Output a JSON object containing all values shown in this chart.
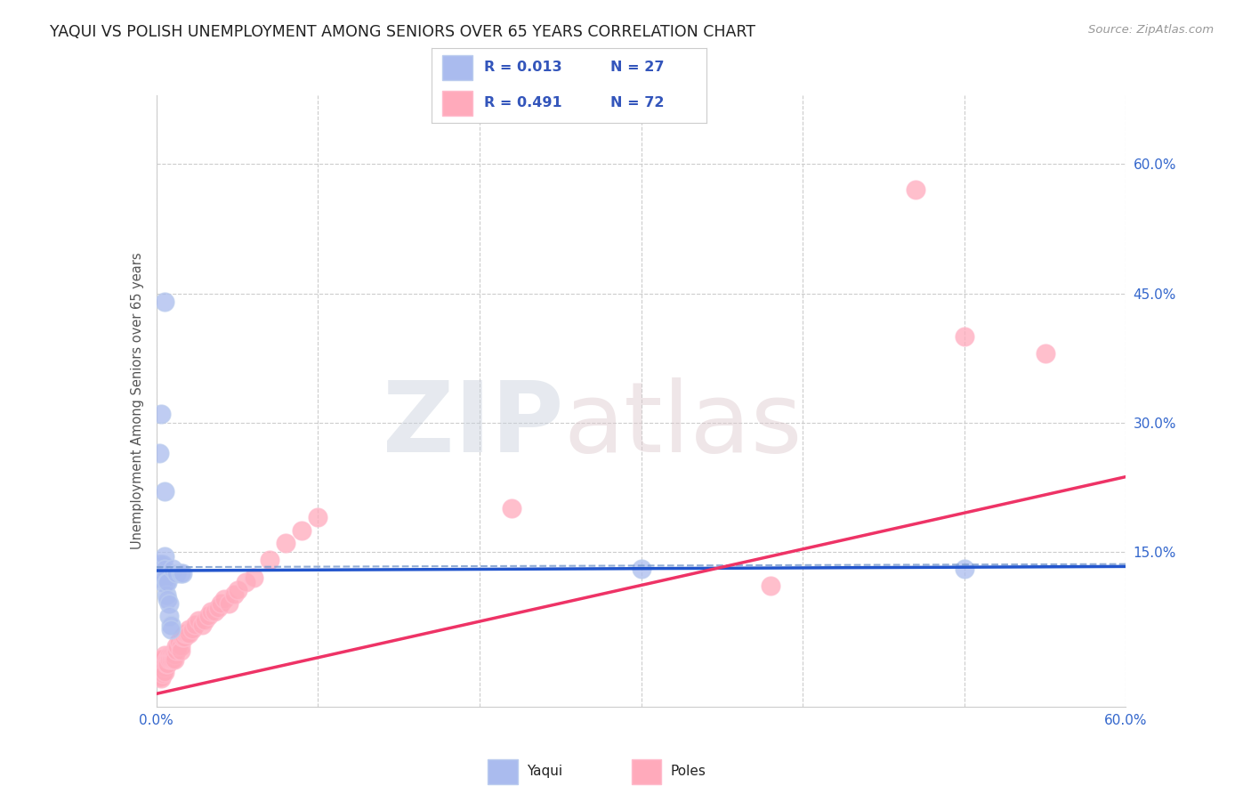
{
  "title": "YAQUI VS POLISH UNEMPLOYMENT AMONG SENIORS OVER 65 YEARS CORRELATION CHART",
  "source": "Source: ZipAtlas.com",
  "ylabel": "Unemployment Among Seniors over 65 years",
  "xlim": [
    0.0,
    0.6
  ],
  "ylim": [
    -0.03,
    0.68
  ],
  "ytick_right_labels": [
    "15.0%",
    "30.0%",
    "45.0%",
    "60.0%"
  ],
  "ytick_right_positions": [
    0.15,
    0.3,
    0.45,
    0.6
  ],
  "background_color": "#ffffff",
  "grid_color": "#cccccc",
  "yaqui_color": "#aabbee",
  "poles_color": "#ffaabb",
  "trend_blue_color": "#2255cc",
  "trend_pink_color": "#ee3366",
  "trend_dashed_color": "#7799cc",
  "blue_line_intercept": 0.128,
  "blue_line_slope": 0.008,
  "pink_line_intercept": -0.015,
  "pink_line_slope": 0.42,
  "dashed_line_intercept": 0.132,
  "dashed_line_slope": 0.006,
  "yaqui_x": [
    0.002,
    0.002,
    0.003,
    0.003,
    0.004,
    0.004,
    0.005,
    0.005,
    0.005,
    0.006,
    0.006,
    0.007,
    0.007,
    0.008,
    0.008,
    0.009,
    0.009,
    0.01,
    0.012,
    0.015,
    0.016,
    0.002,
    0.003,
    0.005,
    0.005,
    0.3,
    0.5
  ],
  "yaqui_y": [
    0.135,
    0.125,
    0.135,
    0.12,
    0.135,
    0.115,
    0.145,
    0.13,
    0.12,
    0.115,
    0.1,
    0.115,
    0.095,
    0.09,
    0.075,
    0.065,
    0.06,
    0.13,
    0.125,
    0.125,
    0.125,
    0.265,
    0.31,
    0.44,
    0.22,
    0.13,
    0.13
  ],
  "poles_x": [
    0.001,
    0.001,
    0.001,
    0.002,
    0.002,
    0.002,
    0.002,
    0.002,
    0.003,
    0.003,
    0.003,
    0.003,
    0.003,
    0.003,
    0.003,
    0.004,
    0.004,
    0.004,
    0.004,
    0.004,
    0.005,
    0.005,
    0.005,
    0.005,
    0.006,
    0.006,
    0.007,
    0.007,
    0.008,
    0.008,
    0.009,
    0.009,
    0.01,
    0.01,
    0.011,
    0.011,
    0.012,
    0.012,
    0.013,
    0.014,
    0.015,
    0.015,
    0.016,
    0.017,
    0.018,
    0.019,
    0.02,
    0.02,
    0.022,
    0.024,
    0.026,
    0.028,
    0.03,
    0.032,
    0.034,
    0.036,
    0.038,
    0.04,
    0.042,
    0.045,
    0.048,
    0.05,
    0.055,
    0.06,
    0.07,
    0.08,
    0.09,
    0.1,
    0.22,
    0.38,
    0.55,
    0.47,
    0.5
  ],
  "poles_y": [
    0.015,
    0.01,
    0.005,
    0.02,
    0.015,
    0.01,
    0.005,
    0.008,
    0.02,
    0.015,
    0.01,
    0.008,
    0.005,
    0.003,
    0.025,
    0.02,
    0.015,
    0.01,
    0.008,
    0.025,
    0.02,
    0.015,
    0.01,
    0.03,
    0.025,
    0.02,
    0.025,
    0.02,
    0.03,
    0.025,
    0.03,
    0.025,
    0.03,
    0.025,
    0.03,
    0.025,
    0.04,
    0.035,
    0.04,
    0.045,
    0.04,
    0.035,
    0.05,
    0.05,
    0.055,
    0.055,
    0.06,
    0.055,
    0.06,
    0.065,
    0.07,
    0.065,
    0.07,
    0.075,
    0.08,
    0.08,
    0.085,
    0.09,
    0.095,
    0.09,
    0.1,
    0.105,
    0.115,
    0.12,
    0.14,
    0.16,
    0.175,
    0.19,
    0.2,
    0.11,
    0.38,
    0.57,
    0.4
  ]
}
